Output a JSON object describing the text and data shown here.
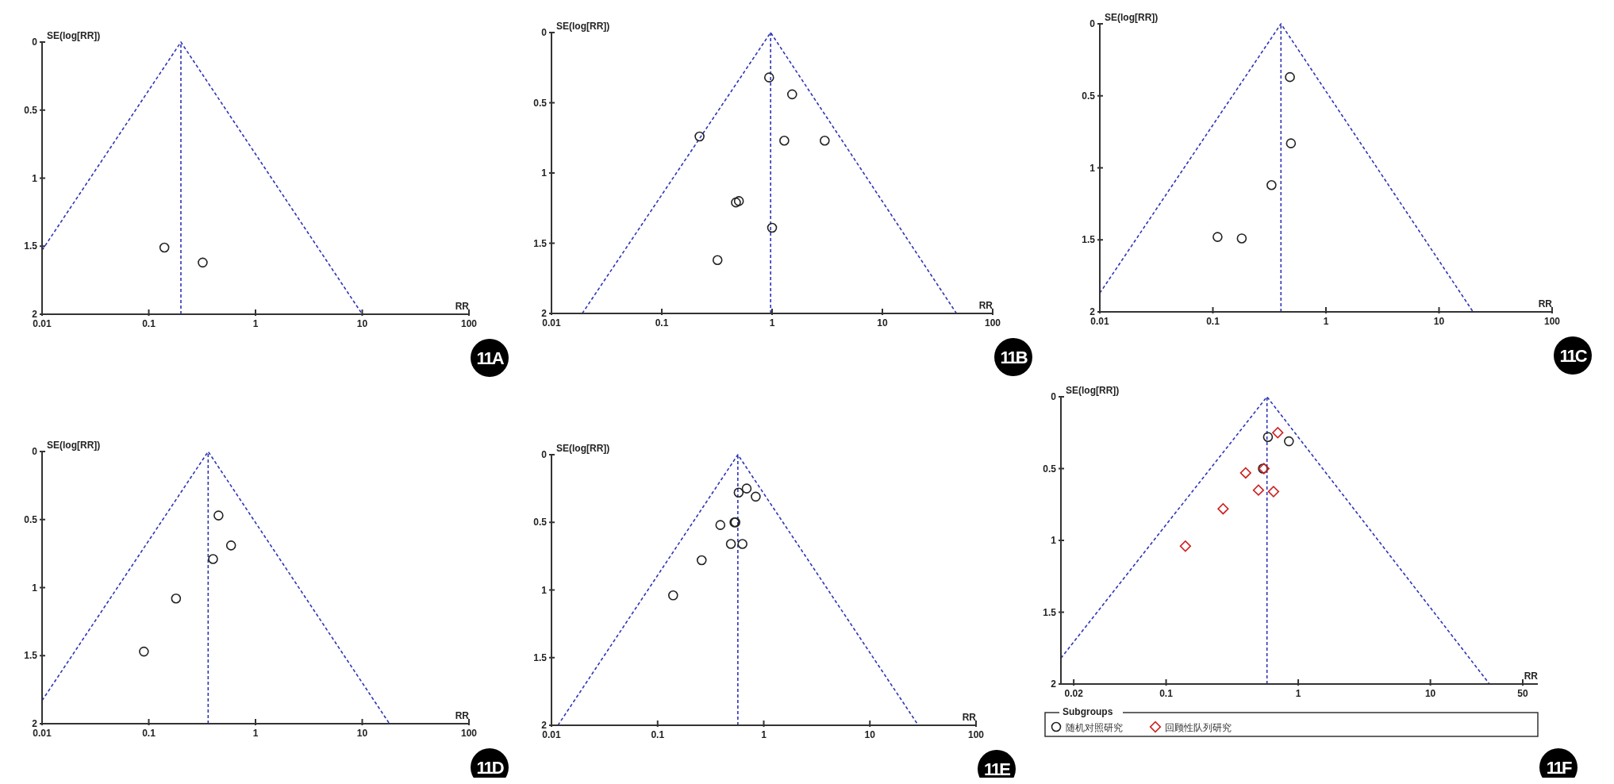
{
  "chart_data": [
    {
      "type": "scatter",
      "title": "11A",
      "xlabel": "RR",
      "ylabel": "SE(log[RR])",
      "log": "x",
      "xlim": [
        0.01,
        100
      ],
      "xticks": [
        0.01,
        0.1,
        1,
        10,
        100
      ],
      "ylim": [
        2,
        0
      ],
      "yticks": [
        0,
        0.5,
        1,
        1.5,
        2
      ],
      "ref_lines": [
        {
          "axis": "x",
          "value": 0.2,
          "color": "#2f35b5",
          "line_style": "dashed"
        }
      ],
      "series": [
        {
          "type": "line",
          "color": "#2f35b5",
          "line_style": "dashed",
          "marker": "none",
          "x": [
            0.01,
            0.2,
            10
          ],
          "values": [
            1.53,
            0,
            2
          ]
        },
        {
          "color": "#222222",
          "marker": "circle",
          "x": [
            0.14,
            0.32
          ],
          "values": [
            1.51,
            1.62
          ]
        }
      ]
    },
    {
      "type": "scatter",
      "title": "11B",
      "xlabel": "RR",
      "ylabel": "SE(log[RR])",
      "log": "x",
      "xlim": [
        0.01,
        100
      ],
      "xticks": [
        0.01,
        0.1,
        1,
        10,
        100
      ],
      "ylim": [
        2,
        0
      ],
      "yticks": [
        0,
        0.5,
        1,
        1.5,
        2
      ],
      "ref_lines": [
        {
          "axis": "x",
          "value": 0.97,
          "color": "#2f35b5",
          "line_style": "dashed"
        }
      ],
      "series": [
        {
          "type": "line",
          "color": "#2f35b5",
          "line_style": "dashed",
          "marker": "none",
          "x": [
            0.019,
            0.97,
            47
          ],
          "values": [
            2,
            0,
            2
          ]
        },
        {
          "color": "#222222",
          "marker": "circle",
          "x": [
            0.94,
            1.52,
            0.22,
            1.29,
            3.0,
            0.47,
            0.5,
            1.0,
            0.32
          ],
          "values": [
            0.32,
            0.44,
            0.74,
            0.77,
            0.77,
            1.21,
            1.2,
            1.39,
            1.62
          ]
        }
      ]
    },
    {
      "type": "scatter",
      "title": "11C",
      "xlabel": "RR",
      "ylabel": "SE(log[RR])",
      "log": "x",
      "xlim": [
        0.01,
        100
      ],
      "xticks": [
        0.01,
        0.1,
        1,
        10,
        100
      ],
      "ylim": [
        2,
        0
      ],
      "yticks": [
        0,
        0.5,
        1,
        1.5,
        2
      ],
      "ref_lines": [
        {
          "axis": "x",
          "value": 0.4,
          "color": "#2f35b5",
          "line_style": "dashed"
        }
      ],
      "series": [
        {
          "type": "line",
          "color": "#2f35b5",
          "line_style": "dashed",
          "marker": "none",
          "x": [
            0.01,
            0.4,
            20
          ],
          "values": [
            1.87,
            0,
            2
          ]
        },
        {
          "color": "#222222",
          "marker": "circle",
          "x": [
            0.48,
            0.49,
            0.33,
            0.11,
            0.18
          ],
          "values": [
            0.37,
            0.83,
            1.12,
            1.48,
            1.49
          ]
        }
      ]
    },
    {
      "type": "scatter",
      "title": "11D",
      "xlabel": "RR",
      "ylabel": "SE(log[RR])",
      "log": "x",
      "xlim": [
        0.01,
        100
      ],
      "xticks": [
        0.01,
        0.1,
        1,
        10,
        100
      ],
      "ylim": [
        2,
        0
      ],
      "yticks": [
        0,
        0.5,
        1,
        1.5,
        2
      ],
      "ref_lines": [
        {
          "axis": "x",
          "value": 0.36,
          "color": "#2f35b5",
          "line_style": "dashed"
        }
      ],
      "series": [
        {
          "type": "line",
          "color": "#2f35b5",
          "line_style": "dashed",
          "marker": "none",
          "x": [
            0.01,
            0.36,
            18
          ],
          "values": [
            1.83,
            0,
            2
          ]
        },
        {
          "color": "#222222",
          "marker": "circle",
          "x": [
            0.45,
            0.59,
            0.4,
            0.18,
            0.09
          ],
          "values": [
            0.47,
            0.69,
            0.79,
            1.08,
            1.47
          ]
        }
      ]
    },
    {
      "type": "scatter",
      "title": "11E",
      "xlabel": "RR",
      "ylabel": "SE(log[RR])",
      "log": "x",
      "xlim": [
        0.01,
        100
      ],
      "xticks": [
        0.01,
        0.1,
        1,
        10,
        100
      ],
      "ylim": [
        2,
        0
      ],
      "yticks": [
        0,
        0.5,
        1,
        1.5,
        2
      ],
      "ref_lines": [
        {
          "axis": "x",
          "value": 0.57,
          "color": "#2f35b5",
          "line_style": "dashed"
        }
      ],
      "series": [
        {
          "type": "line",
          "color": "#2f35b5",
          "line_style": "dashed",
          "marker": "none",
          "x": [
            0.0115,
            0.57,
            28.6
          ],
          "values": [
            2,
            0,
            2
          ]
        },
        {
          "color": "#222222",
          "marker": "circle",
          "x": [
            0.69,
            0.58,
            0.84,
            0.54,
            0.53,
            0.39,
            0.49,
            0.63,
            0.26,
            0.14
          ],
          "values": [
            0.25,
            0.28,
            0.31,
            0.5,
            0.5,
            0.52,
            0.66,
            0.66,
            0.78,
            1.04
          ]
        }
      ]
    },
    {
      "type": "scatter",
      "title": "11F",
      "xlabel": "RR",
      "ylabel": "SE(log[RR])",
      "log": "x",
      "xlim": [
        0.016,
        65
      ],
      "xticks": [
        0.02,
        0.1,
        1,
        10,
        50
      ],
      "ylim": [
        2,
        0
      ],
      "yticks": [
        0,
        0.5,
        1,
        1.5,
        2
      ],
      "legend": "bottom",
      "legend_title": "Subgroups",
      "ref_lines": [
        {
          "axis": "x",
          "value": 0.58,
          "color": "#2f35b5",
          "line_style": "dashed"
        }
      ],
      "series": [
        {
          "type": "line",
          "color": "#2f35b5",
          "line_style": "dashed",
          "marker": "none",
          "x": [
            0.016,
            0.58,
            28
          ],
          "values": [
            1.82,
            0,
            2
          ]
        },
        {
          "name": "随机对照研究",
          "color": "#222222",
          "marker": "circle",
          "x": [
            0.59,
            0.85,
            0.54
          ],
          "values": [
            0.28,
            0.31,
            0.5
          ]
        },
        {
          "name": "回顾性队列研究",
          "color": "#cc1f1f",
          "marker": "diamond",
          "x": [
            0.7,
            0.55,
            0.4,
            0.5,
            0.65,
            0.27,
            0.14
          ],
          "values": [
            0.25,
            0.5,
            0.53,
            0.65,
            0.66,
            0.78,
            1.04
          ]
        }
      ]
    }
  ]
}
